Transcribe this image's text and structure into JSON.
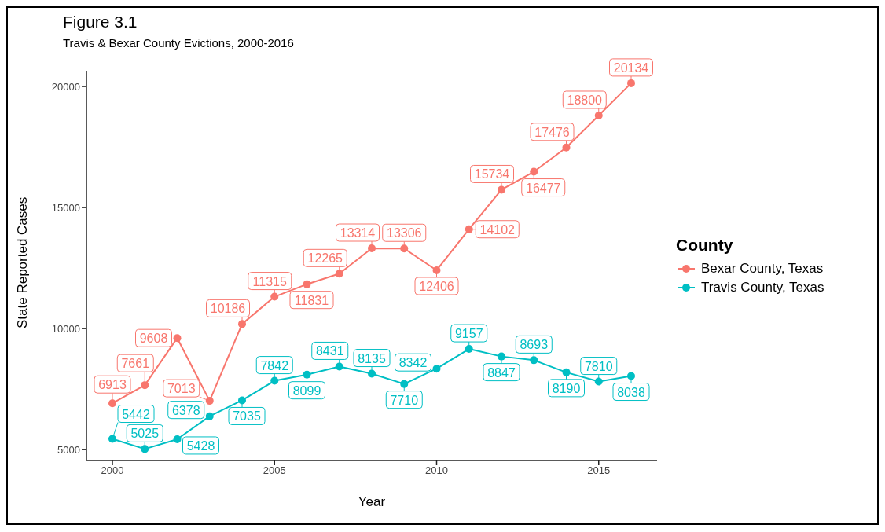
{
  "chart_data": {
    "type": "line",
    "title": "Figure 3.1",
    "subtitle": "Travis & Bexar County Evictions, 2000-2016",
    "xlabel": "Year",
    "ylabel": "State Reported Cases",
    "legend_title": "County",
    "x": [
      2000,
      2001,
      2002,
      2003,
      2004,
      2005,
      2006,
      2007,
      2008,
      2009,
      2010,
      2011,
      2012,
      2013,
      2014,
      2015,
      2016
    ],
    "series": [
      {
        "name": "Bexar County, Texas",
        "color": "#f8766d",
        "values": [
          6913,
          7661,
          9608,
          7013,
          10186,
          11315,
          11831,
          12265,
          13314,
          13306,
          12406,
          14102,
          15734,
          16477,
          17476,
          18800,
          20134
        ]
      },
      {
        "name": "Travis County, Texas",
        "color": "#00bfc4",
        "values": [
          5442,
          5025,
          5428,
          6378,
          7035,
          7842,
          8099,
          8431,
          8135,
          7710,
          8342,
          9157,
          8847,
          8693,
          8190,
          7810,
          8038
        ]
      }
    ],
    "xlim": [
      1999.2,
      2016.8
    ],
    "xticks": [
      2000,
      2005,
      2010,
      2015
    ],
    "ylim": [
      4550,
      20650
    ],
    "yticks": [
      5000,
      10000,
      15000,
      20000
    ],
    "grid": false,
    "legend": "right",
    "marker": "circle",
    "line_style": "solid",
    "data_labels": true
  }
}
